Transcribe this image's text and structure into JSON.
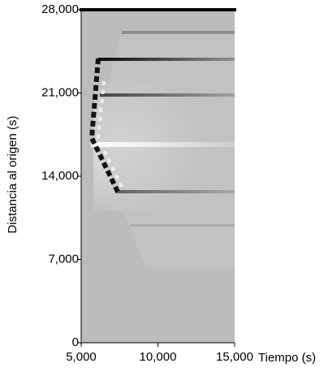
{
  "chart_data": {
    "type": "heatmap",
    "xlabel": "Tiempo (s)",
    "ylabel": "Distancia al origen (s)",
    "xlim": [
      5000,
      15000
    ],
    "xticks": [
      {
        "value": 5000,
        "label": "5,000"
      },
      {
        "value": 10000,
        "label": "10,000"
      },
      {
        "value": 15000,
        "label": "15,000"
      }
    ],
    "ylim": [
      0,
      28000
    ],
    "yticks": [
      0,
      {
        "value": 7000,
        "label": "7,000"
      },
      {
        "value": 14000,
        "label": "14,000"
      },
      {
        "value": 21000,
        "label": "21,000"
      },
      {
        "value": 28000,
        "label": "28,000"
      }
    ]
  }
}
